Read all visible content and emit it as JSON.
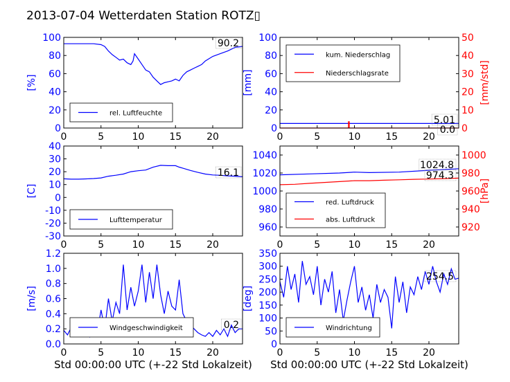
{
  "title": "2013-07-04 Wetterdaten Station ROTZ▯",
  "colors": {
    "left_axis": "#0000ff",
    "right_axis": "#ff0000",
    "frame": "#000000",
    "gust": "#8080ff"
  },
  "xlabel": "Std 00:00:00 UTC (+-22 Std Lokalzeit)",
  "chart_data": [
    {
      "type": "line",
      "ylabel": "[%]",
      "xlim": [
        0,
        24
      ],
      "ylim": [
        0,
        100
      ],
      "xticks": [
        0,
        5,
        10,
        15,
        20
      ],
      "yticks": [
        0,
        20,
        40,
        60,
        80,
        100
      ],
      "legend_position": "lower-left",
      "current_value": "90.2",
      "series": [
        {
          "name": "rel. Luftfeuchte",
          "color": "#0000ff",
          "x": [
            0,
            1,
            2,
            3,
            4,
            5,
            5.5,
            6,
            6.5,
            7,
            7.5,
            8,
            8.5,
            9,
            9.3,
            9.5,
            10,
            10.5,
            11,
            11.5,
            12,
            12.5,
            13,
            13.5,
            14,
            14.5,
            15,
            15.5,
            16,
            16.5,
            17,
            17.5,
            18,
            18.5,
            19,
            20,
            21,
            22,
            23,
            24
          ],
          "y": [
            93,
            93,
            93,
            93,
            93,
            92,
            90,
            85,
            81,
            78,
            75,
            76,
            72,
            70,
            74,
            82,
            76,
            70,
            64,
            62,
            56,
            52,
            48,
            50,
            51,
            52,
            54,
            52,
            58,
            62,
            64,
            66,
            68,
            70,
            74,
            79,
            82,
            85,
            89,
            90
          ]
        }
      ]
    },
    {
      "type": "line",
      "ylabel": "[mm]",
      "ylabel_right": "[mm/std]",
      "xlim": [
        0,
        24
      ],
      "ylim": [
        0,
        100
      ],
      "ylim_right": [
        0,
        50
      ],
      "xticks": [
        0,
        5,
        10,
        15,
        20
      ],
      "yticks": [
        0,
        20,
        40,
        60,
        80,
        100
      ],
      "yticks_right": [
        0,
        10,
        20,
        30,
        40,
        50
      ],
      "legend_position": "upper-left",
      "current_values": [
        "5.01",
        "0.0"
      ],
      "series": [
        {
          "name": "kum. Niederschlag",
          "color": "#0000ff",
          "axis": "left",
          "x": [
            0,
            9.3,
            9.3,
            24
          ],
          "y": [
            5.0,
            5.0,
            5.01,
            5.01
          ]
        },
        {
          "name": "Niederschlagsrate",
          "color": "#ff0000",
          "axis": "right",
          "x": [
            0,
            9.2,
            9.2,
            9.3,
            9.3,
            24
          ],
          "y": [
            0,
            0,
            3.5,
            3.5,
            0,
            0
          ]
        }
      ]
    },
    {
      "type": "line",
      "ylabel": "[C]",
      "xlim": [
        0,
        24
      ],
      "ylim": [
        -30,
        40
      ],
      "xticks": [
        0,
        5,
        10,
        15,
        20
      ],
      "yticks": [
        -30,
        -20,
        -10,
        0,
        10,
        20,
        30,
        40
      ],
      "legend_position": "lower-left",
      "current_value": "16.1",
      "series": [
        {
          "name": "Lufttemperatur",
          "color": "#0000ff",
          "x": [
            0,
            1,
            2,
            3,
            4,
            5,
            6,
            7,
            8,
            9,
            10,
            11,
            12,
            13,
            14,
            15,
            15.5,
            16,
            17,
            18,
            19,
            20,
            21,
            22,
            23,
            24
          ],
          "y": [
            14.5,
            14.2,
            14.2,
            14.4,
            14.7,
            15.2,
            16.5,
            17.3,
            18.2,
            20,
            20.8,
            21.3,
            23.5,
            25,
            24.7,
            24.7,
            23.6,
            22.7,
            21,
            19.5,
            18.2,
            17.5,
            17.2,
            16.8,
            16.5,
            16.1
          ]
        }
      ]
    },
    {
      "type": "line",
      "ylabel_right": "[hPa]",
      "xlim": [
        0,
        24
      ],
      "ylim": [
        950,
        1050
      ],
      "ylim_right": [
        910,
        1010
      ],
      "xticks": [
        0,
        5,
        10,
        15,
        20
      ],
      "yticks": [
        960,
        980,
        1000,
        1020,
        1040
      ],
      "yticks_right": [
        920,
        940,
        960,
        980,
        1000
      ],
      "legend_position": "lower-left",
      "current_values": [
        "1024.8",
        "974.3"
      ],
      "series": [
        {
          "name": "red. Luftdruck",
          "color": "#0000ff",
          "axis": "left",
          "x": [
            0,
            4,
            8,
            10,
            12,
            16,
            20,
            24
          ],
          "y": [
            1018,
            1019,
            1020,
            1021,
            1020.5,
            1021,
            1023,
            1024.8
          ]
        },
        {
          "name": "abs. Luftdruck",
          "color": "#ff0000",
          "axis": "right",
          "x": [
            0,
            2,
            4,
            6,
            8,
            10,
            12,
            14,
            16,
            18,
            20,
            22,
            24
          ],
          "y": [
            967,
            967.5,
            968.5,
            969.5,
            970.5,
            971.5,
            971.5,
            972,
            972.5,
            973,
            973.3,
            973.8,
            974.3
          ]
        }
      ]
    },
    {
      "type": "line",
      "ylabel": "[m/s]",
      "xlim": [
        0,
        24
      ],
      "ylim": [
        0,
        1.2
      ],
      "xticks": [
        0,
        5,
        10,
        15,
        20
      ],
      "yticks": [
        0.0,
        0.2,
        0.4,
        0.6,
        0.8,
        1.0,
        1.2
      ],
      "legend_position": "lower-left",
      "current_value": "0.2",
      "series": [
        {
          "name": "Windgeschwindigkeit",
          "color": "#0000ff",
          "x": [
            0,
            0.5,
            1,
            1.5,
            2,
            2.5,
            3,
            3.5,
            4,
            4.5,
            5,
            5.5,
            6,
            6.5,
            7,
            7.5,
            8,
            8.5,
            9,
            9.5,
            10,
            10.5,
            11,
            11.5,
            12,
            12.5,
            13,
            13.5,
            14,
            14.5,
            15,
            15.5,
            16,
            16.5,
            17,
            17.5,
            18,
            18.5,
            19,
            19.5,
            20,
            20.5,
            21,
            21.5,
            22,
            22.5,
            23,
            23.5,
            24
          ],
          "y": [
            0.18,
            0.12,
            0.22,
            0.15,
            0.3,
            0.12,
            0.25,
            0.1,
            0.32,
            0.15,
            0.45,
            0.2,
            0.6,
            0.3,
            0.55,
            0.4,
            1.05,
            0.45,
            0.75,
            0.5,
            0.7,
            1.05,
            0.55,
            0.95,
            0.6,
            1.05,
            0.65,
            0.4,
            0.7,
            0.5,
            0.45,
            0.85,
            0.4,
            0.3,
            0.25,
            0.2,
            0.15,
            0.12,
            0.1,
            0.15,
            0.1,
            0.18,
            0.12,
            0.2,
            0.1,
            0.25,
            0.15,
            0.2,
            0.2
          ]
        }
      ]
    },
    {
      "type": "line",
      "ylabel": "[deg]",
      "xlim": [
        0,
        24
      ],
      "ylim": [
        0,
        350
      ],
      "xticks": [
        0,
        5,
        10,
        15,
        20
      ],
      "yticks": [
        0,
        50,
        100,
        150,
        200,
        250,
        300,
        350
      ],
      "legend_position": "lower-left",
      "current_value": "254.5",
      "series": [
        {
          "name": "Windrichtung",
          "color": "#0000ff",
          "x": [
            0,
            0.5,
            1,
            1.5,
            2,
            2.5,
            3,
            3.5,
            4,
            4.5,
            5,
            5.5,
            6,
            6.5,
            7,
            7.5,
            8,
            8.5,
            9,
            9.5,
            10,
            10.5,
            11,
            11.5,
            12,
            12.5,
            13,
            13.5,
            14,
            14.5,
            15,
            15.5,
            16,
            16.5,
            17,
            17.5,
            18,
            18.5,
            19,
            19.5,
            20,
            20.5,
            21,
            21.5,
            22,
            22.5,
            23,
            23.5,
            24
          ],
          "y": [
            240,
            180,
            300,
            210,
            270,
            160,
            320,
            230,
            260,
            190,
            300,
            150,
            250,
            200,
            280,
            120,
            210,
            90,
            170,
            240,
            300,
            160,
            220,
            130,
            190,
            100,
            230,
            160,
            210,
            180,
            60,
            260,
            160,
            240,
            120,
            220,
            190,
            260,
            210,
            280,
            230,
            300,
            240,
            200,
            270,
            230,
            290,
            250,
            254
          ]
        }
      ]
    }
  ]
}
